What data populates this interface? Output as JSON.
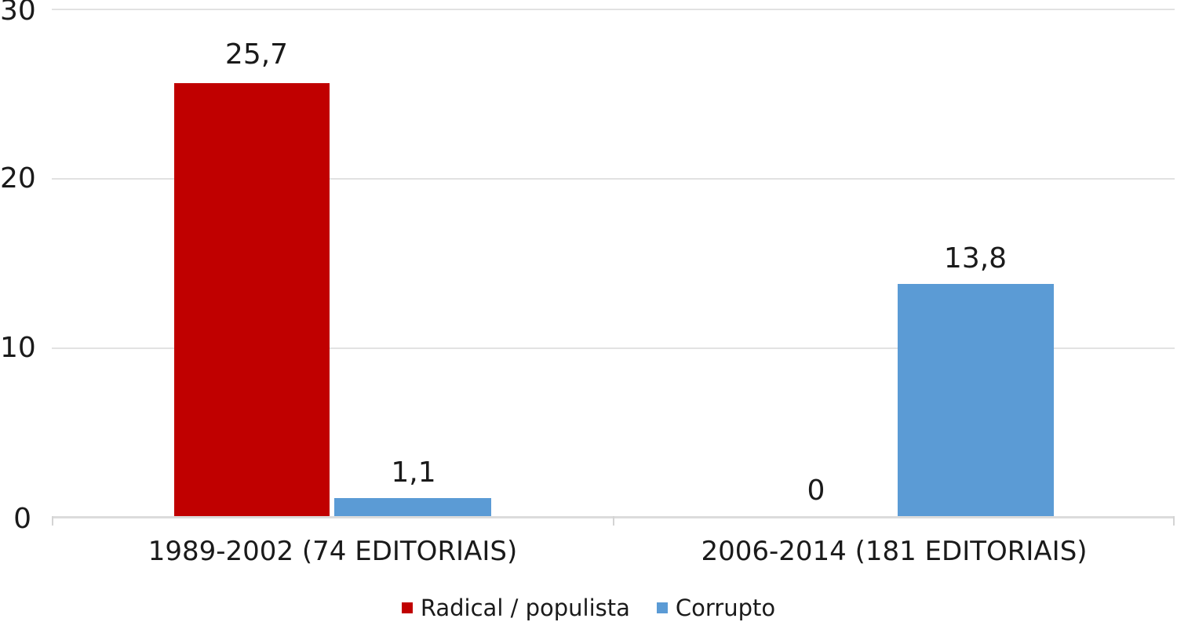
{
  "chart_data": {
    "type": "bar",
    "title": "",
    "categories": [
      "1989-2002 (74 EDITORIAIS)",
      "2006-2014 (181 EDITORIAIS)"
    ],
    "series": [
      {
        "name": "Radical / populista",
        "color": "#c00000",
        "values": [
          25.7,
          0
        ],
        "display_values": [
          "25,7",
          "0"
        ]
      },
      {
        "name": "Corrupto",
        "color": "#5b9bd5",
        "values": [
          1.1,
          13.8
        ],
        "display_values": [
          "1,1",
          "13,8"
        ]
      }
    ],
    "y_axis": {
      "ticks": [
        "0",
        "10",
        "20",
        "30"
      ],
      "range": [
        0,
        30
      ]
    },
    "decimal_separator": ",",
    "grid": "horizontal",
    "legend_position": "bottom"
  },
  "colors": {
    "series_radical": "#c00000",
    "series_corrupto": "#5b9bd5",
    "gridline": "#e2e2e2",
    "text": "#1a1a1a",
    "background": "#ffffff"
  }
}
